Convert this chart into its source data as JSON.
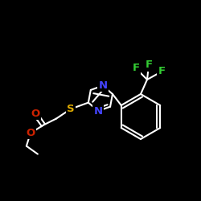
{
  "background_color": "#000000",
  "atom_colors": {
    "N": "#4444ff",
    "S": "#ddaa00",
    "O": "#cc2200",
    "F": "#33cc33",
    "C": "#ffffff"
  },
  "font_size_atoms": 9.5,
  "fig_size": [
    2.5,
    2.5
  ],
  "dpi": 100,
  "lw": 1.5
}
